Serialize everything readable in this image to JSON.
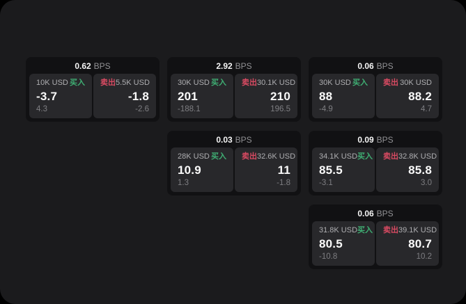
{
  "labels": {
    "bps": "BPS",
    "buy": "买入",
    "sell": "卖出"
  },
  "colors": {
    "buy_green": "#3fae73",
    "sell_red": "#d84a62",
    "window_background": "#1b1b1d",
    "card_background": "#111113",
    "panel_background": "#28282b"
  },
  "cards": [
    {
      "bps": "0.62",
      "col": 1,
      "row": 1,
      "buy": {
        "amount": "10K USD",
        "value": "-3.7",
        "change": "4.3"
      },
      "sell": {
        "amount": "5.5K USD",
        "value": "-1.8",
        "change": "-2.6"
      }
    },
    {
      "bps": "2.92",
      "col": 2,
      "row": 1,
      "buy": {
        "amount": "30K USD",
        "value": "201",
        "change": "-188.1"
      },
      "sell": {
        "amount": "30.1K USD",
        "value": "210",
        "change": "196.5"
      }
    },
    {
      "bps": "0.06",
      "col": 3,
      "row": 1,
      "buy": {
        "amount": "30K USD",
        "value": "88",
        "change": "-4.9"
      },
      "sell": {
        "amount": "30K USD",
        "value": "88.2",
        "change": "4.7"
      }
    },
    {
      "bps": "0.03",
      "col": 2,
      "row": 2,
      "buy": {
        "amount": "28K USD",
        "value": "10.9",
        "change": "1.3"
      },
      "sell": {
        "amount": "32.6K USD",
        "value": "11",
        "change": "-1.8"
      }
    },
    {
      "bps": "0.09",
      "col": 3,
      "row": 2,
      "buy": {
        "amount": "34.1K USD",
        "value": "85.5",
        "change": "-3.1"
      },
      "sell": {
        "amount": "32.8K USD",
        "value": "85.8",
        "change": "3.0"
      }
    },
    {
      "bps": "0.06",
      "col": 3,
      "row": 3,
      "buy": {
        "amount": "31.8K USD",
        "value": "80.5",
        "change": "-10.8"
      },
      "sell": {
        "amount": "39.1K USD",
        "value": "80.7",
        "change": "10.2"
      }
    }
  ]
}
